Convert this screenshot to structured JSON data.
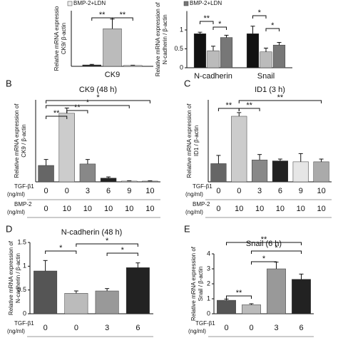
{
  "chart_data": [
    {
      "type": "bar",
      "y_label": [
        "Relative mRNA expressio",
        "CK9/ β-actin"
      ],
      "categories": [
        "CK9"
      ],
      "ylim": [
        0,
        20
      ],
      "series": [
        {
          "color": "#222222",
          "values": [
            0.5
          ],
          "errors": [
            0.2
          ]
        },
        {
          "color": "#bbbbbb",
          "values": [
            13.5
          ],
          "errors": [
            3.5
          ]
        },
        {
          "name": "BMP-2+LDN",
          "color": "#eeeeee",
          "values": [
            0.3
          ],
          "errors": [
            0.1
          ]
        }
      ],
      "annotations": [
        "**",
        "**"
      ]
    },
    {
      "type": "bar",
      "y_label": [
        "Relative mRNA expression of",
        "N-cadherin / β-actin"
      ],
      "categories": [
        "N-cadherin",
        "Snail"
      ],
      "ylim": [
        0,
        1.5
      ],
      "yticks": [
        0,
        0.5,
        1
      ],
      "series": [
        {
          "color": "#111111",
          "values": [
            0.9,
            0.9
          ],
          "errors": [
            0.04,
            0.2
          ]
        },
        {
          "color": "#bbbbbb",
          "values": [
            0.45,
            0.42
          ],
          "errors": [
            0.12,
            0.1
          ]
        },
        {
          "name": "BMP-2+LDN",
          "color": "#777777",
          "values": [
            0.8,
            0.6
          ],
          "errors": [
            0.06,
            0.07
          ]
        }
      ],
      "annotations": [
        "**",
        "*",
        "*",
        "*"
      ]
    },
    {
      "type": "bar",
      "label": "B",
      "title": "CK9 (48 h)",
      "y_label": [
        "Relative mRNA expression of",
        "CK9 / β-actin"
      ],
      "ylim": [
        0,
        5.5
      ],
      "values": [
        1.1,
        4.6,
        1.2,
        0.25,
        0.05,
        0.05
      ],
      "errors": [
        0.4,
        0.35,
        0.3,
        0.08,
        0.02,
        0.02
      ],
      "colors": [
        "#666666",
        "#cccccc",
        "#888888",
        "#222222",
        "#e6e6e6",
        "#aaaaaa"
      ],
      "treatments": [
        {
          "name": "TGF-β1",
          "unit": "(ng/ml)",
          "values": [
            0,
            0,
            3,
            6,
            9,
            10
          ]
        },
        {
          "name": "BMP-2",
          "unit": "(ng/ml)",
          "values": [
            0,
            10,
            10,
            10,
            10,
            10
          ]
        }
      ],
      "annotations": [
        "**",
        "**",
        "*",
        "*"
      ]
    },
    {
      "type": "bar",
      "label": "C",
      "title": "ID1 (3 h)",
      "y_label": [
        "Relative mRNA expression of",
        "ID1 / β-actin"
      ],
      "ylim": [
        0,
        4.5
      ],
      "values": [
        1.0,
        3.6,
        1.2,
        1.15,
        1.1,
        1.1
      ],
      "errors": [
        0.45,
        0.2,
        0.3,
        0.1,
        0.45,
        0.15
      ],
      "colors": [
        "#666666",
        "#cccccc",
        "#888888",
        "#222222",
        "#e6e6e6",
        "#aaaaaa"
      ],
      "treatments": [
        {
          "name": "TGF-β1",
          "unit": "(ng/ml)",
          "values": [
            0,
            0,
            3,
            6,
            9,
            10
          ]
        },
        {
          "name": "BMP-2",
          "unit": "(ng/ml)",
          "values": [
            0,
            10,
            10,
            10,
            10,
            10
          ]
        }
      ],
      "annotations": [
        "**",
        "**",
        "**"
      ]
    },
    {
      "type": "bar",
      "label": "D",
      "title": "N-cadherin (48 h)",
      "y_label": [
        "Relative mRNA expression of",
        "N-cadherin / β-actin"
      ],
      "ylim": [
        0,
        1.5
      ],
      "yticks": [
        0,
        0.5,
        1,
        1.5
      ],
      "values": [
        0.9,
        0.43,
        0.48,
        0.97
      ],
      "errors": [
        0.22,
        0.05,
        0.05,
        0.1
      ],
      "colors": [
        "#555555",
        "#bbbbbb",
        "#999999",
        "#222222"
      ],
      "treatments": [
        {
          "name": "TGF-β1",
          "unit": "(ng/ml)",
          "values": [
            0,
            0,
            3,
            6
          ]
        }
      ],
      "annotations": [
        "*",
        "*",
        "*"
      ]
    },
    {
      "type": "bar",
      "label": "E",
      "title": "Snail (6 h)",
      "y_label": [
        "Relative mRNA expression of",
        "Snail / β-actin"
      ],
      "ylim": [
        0,
        4
      ],
      "yticks": [
        0,
        1,
        2,
        3,
        4
      ],
      "values": [
        0.9,
        0.6,
        3.0,
        2.3
      ],
      "errors": [
        0.08,
        0.07,
        0.45,
        0.35
      ],
      "colors": [
        "#555555",
        "#bbbbbb",
        "#999999",
        "#222222"
      ],
      "treatments": [
        {
          "name": "TGF-β1",
          "unit": "(ng/ml)",
          "values": [
            0,
            0,
            3,
            6
          ]
        }
      ],
      "annotations": [
        "**",
        "*",
        "*",
        "**"
      ]
    }
  ]
}
